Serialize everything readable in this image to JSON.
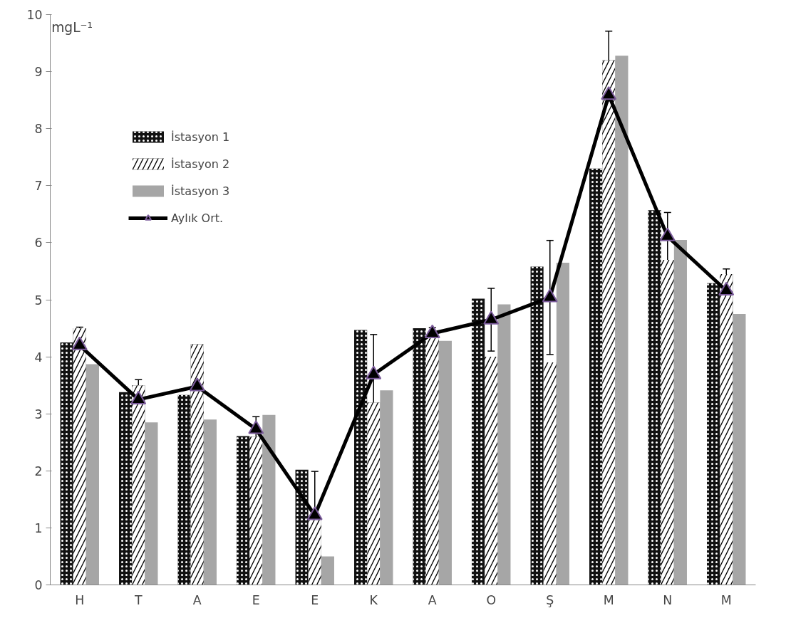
{
  "chart_data": {
    "type": "bar",
    "ylabel": "mgL⁻¹",
    "categories": [
      "H",
      "T",
      "A",
      "E",
      "E",
      "K",
      "A",
      "O",
      "Ş",
      "M",
      "N",
      "M"
    ],
    "series": [
      {
        "name": "İstasyon 1",
        "color": "#111111",
        "values": [
          4.25,
          3.38,
          3.33,
          2.61,
          2.02,
          4.47,
          4.5,
          5.02,
          5.58,
          7.3,
          6.57,
          5.29
        ]
      },
      {
        "name": "İstasyon 2",
        "color": "#000000",
        "values": [
          4.5,
          3.5,
          4.22,
          2.6,
          1.15,
          3.2,
          4.45,
          4.0,
          3.9,
          9.2,
          5.7,
          5.45
        ]
      },
      {
        "name": "İstasyon 3",
        "color": "#a6a6a6",
        "values": [
          3.87,
          2.85,
          2.9,
          2.98,
          0.5,
          3.41,
          4.28,
          4.92,
          5.65,
          9.28,
          6.05,
          4.75
        ]
      },
      {
        "name": "Aylık Ort.",
        "type": "line",
        "color": "#000000",
        "marker": "triangle",
        "values": [
          4.2,
          3.25,
          3.48,
          2.73,
          1.22,
          3.69,
          4.41,
          4.65,
          5.04,
          8.59,
          6.11,
          5.16
        ],
        "errors": [
          0.32,
          0.35,
          0.7,
          0.22,
          0.77,
          0.7,
          0.1,
          0.55,
          1.0,
          1.12,
          0.42,
          0.38
        ]
      }
    ],
    "ylim": [
      0,
      10
    ],
    "yticks": [
      0,
      1,
      2,
      3,
      4,
      5,
      6,
      7,
      8,
      9,
      10
    ],
    "grid": false,
    "legend": "top left"
  }
}
